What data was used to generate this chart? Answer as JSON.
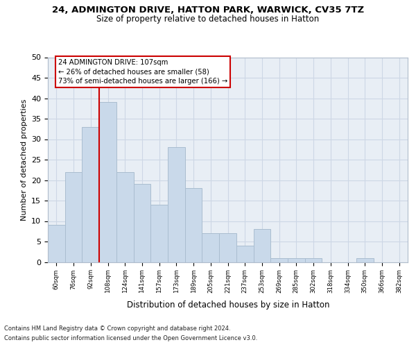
{
  "title": "24, ADMINGTON DRIVE, HATTON PARK, WARWICK, CV35 7TZ",
  "subtitle": "Size of property relative to detached houses in Hatton",
  "xlabel": "Distribution of detached houses by size in Hatton",
  "ylabel": "Number of detached properties",
  "bin_labels": [
    "60sqm",
    "76sqm",
    "92sqm",
    "108sqm",
    "124sqm",
    "141sqm",
    "157sqm",
    "173sqm",
    "189sqm",
    "205sqm",
    "221sqm",
    "237sqm",
    "253sqm",
    "269sqm",
    "285sqm",
    "302sqm",
    "318sqm",
    "334sqm",
    "350sqm",
    "366sqm",
    "382sqm"
  ],
  "bar_values": [
    9,
    22,
    33,
    39,
    22,
    19,
    14,
    28,
    18,
    7,
    7,
    4,
    8,
    1,
    1,
    1,
    0,
    0,
    1,
    0,
    0
  ],
  "bar_color": "#c9d9ea",
  "bar_edge_color": "#aabdd0",
  "grid_color": "#cdd7e5",
  "background_color": "#e8eef5",
  "vline_color": "#cc0000",
  "vline_x_index": 3,
  "annotation_lines": [
    "24 ADMINGTON DRIVE: 107sqm",
    "← 26% of detached houses are smaller (58)",
    "73% of semi-detached houses are larger (166) →"
  ],
  "annotation_box_color": "#ffffff",
  "annotation_box_edge_color": "#cc0000",
  "footer_line1": "Contains HM Land Registry data © Crown copyright and database right 2024.",
  "footer_line2": "Contains public sector information licensed under the Open Government Licence v3.0.",
  "ylim": [
    0,
    50
  ],
  "yticks": [
    0,
    5,
    10,
    15,
    20,
    25,
    30,
    35,
    40,
    45,
    50
  ]
}
